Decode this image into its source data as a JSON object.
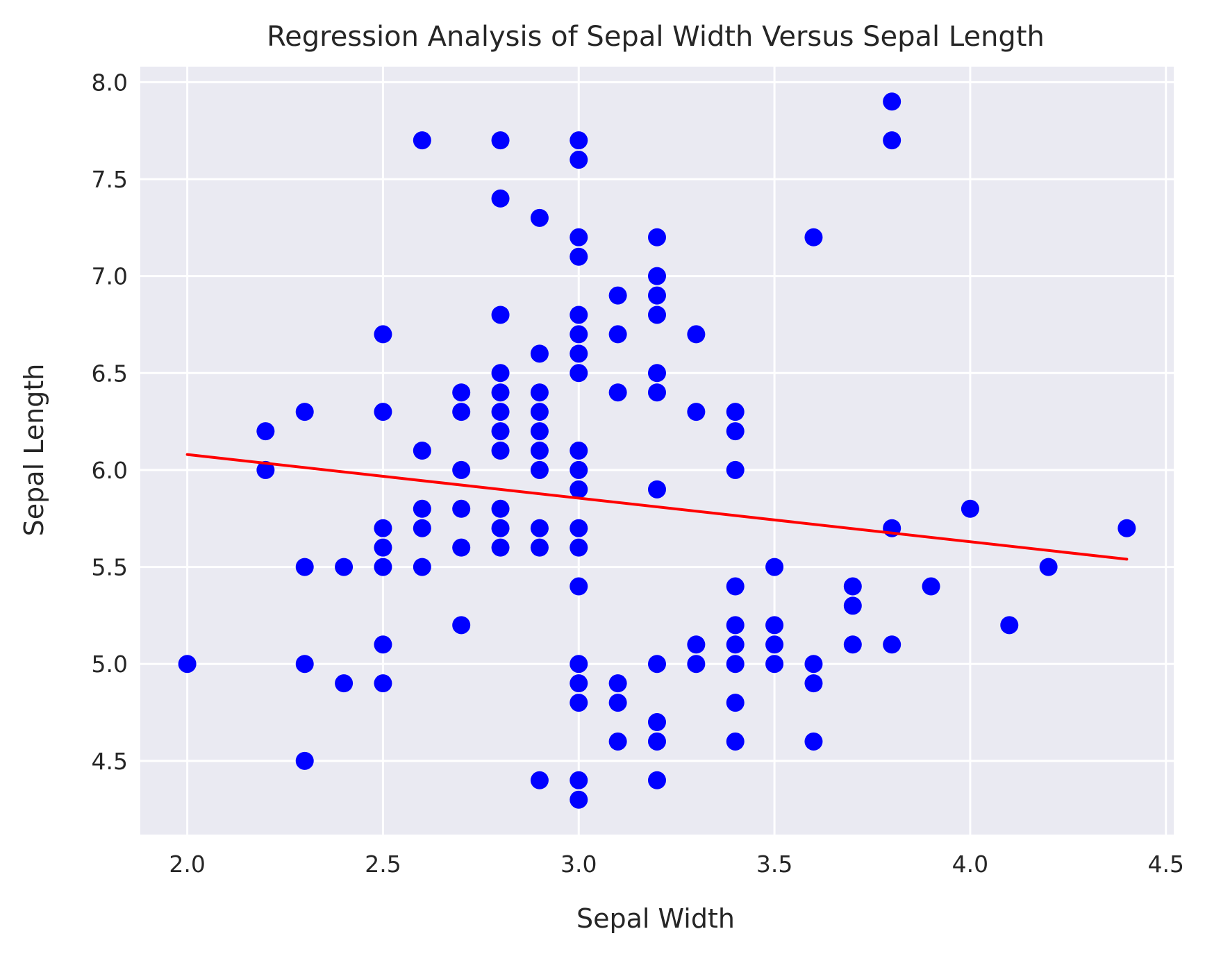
{
  "chart_data": {
    "type": "scatter",
    "title": "Regression Analysis of Sepal Width Versus Sepal Length",
    "xlabel": "Sepal Width",
    "ylabel": "Sepal Length",
    "xlim": [
      1.88,
      4.52
    ],
    "ylim": [
      4.12,
      8.08
    ],
    "x_ticks": [
      2.0,
      2.5,
      3.0,
      3.5,
      4.0,
      4.5
    ],
    "x_tick_labels": [
      "2.0",
      "2.5",
      "3.0",
      "3.5",
      "4.0",
      "4.5"
    ],
    "y_ticks": [
      4.5,
      5.0,
      5.5,
      6.0,
      6.5,
      7.0,
      7.5,
      8.0
    ],
    "y_tick_labels": [
      "4.5",
      "5.0",
      "5.5",
      "6.0",
      "6.5",
      "7.0",
      "7.5",
      "8.0"
    ],
    "grid": true,
    "background_color": "#EAEAF2",
    "grid_color": "#FFFFFF",
    "series": [
      {
        "type": "scatter",
        "color": "#0000FF",
        "points": [
          [
            2.0,
            5.0
          ],
          [
            2.2,
            6.2
          ],
          [
            2.2,
            6.0
          ],
          [
            2.3,
            6.3
          ],
          [
            2.3,
            5.5
          ],
          [
            2.3,
            5.0
          ],
          [
            2.3,
            4.5
          ],
          [
            2.4,
            5.5
          ],
          [
            2.4,
            4.9
          ],
          [
            2.5,
            6.7
          ],
          [
            2.5,
            6.3
          ],
          [
            2.5,
            5.7
          ],
          [
            2.5,
            5.6
          ],
          [
            2.5,
            5.5
          ],
          [
            2.5,
            5.1
          ],
          [
            2.5,
            4.9
          ],
          [
            2.6,
            7.7
          ],
          [
            2.6,
            6.1
          ],
          [
            2.6,
            5.8
          ],
          [
            2.6,
            5.7
          ],
          [
            2.6,
            5.5
          ],
          [
            2.7,
            6.4
          ],
          [
            2.7,
            6.3
          ],
          [
            2.7,
            6.0
          ],
          [
            2.7,
            5.8
          ],
          [
            2.7,
            5.6
          ],
          [
            2.7,
            5.2
          ],
          [
            2.8,
            7.7
          ],
          [
            2.8,
            7.4
          ],
          [
            2.8,
            6.8
          ],
          [
            2.8,
            6.5
          ],
          [
            2.8,
            6.4
          ],
          [
            2.8,
            6.3
          ],
          [
            2.8,
            6.2
          ],
          [
            2.8,
            6.1
          ],
          [
            2.8,
            5.8
          ],
          [
            2.8,
            5.7
          ],
          [
            2.8,
            5.6
          ],
          [
            2.9,
            7.3
          ],
          [
            2.9,
            6.6
          ],
          [
            2.9,
            6.4
          ],
          [
            2.9,
            6.3
          ],
          [
            2.9,
            6.2
          ],
          [
            2.9,
            6.1
          ],
          [
            2.9,
            6.0
          ],
          [
            2.9,
            5.7
          ],
          [
            2.9,
            5.6
          ],
          [
            2.9,
            4.4
          ],
          [
            3.0,
            7.7
          ],
          [
            3.0,
            7.6
          ],
          [
            3.0,
            7.2
          ],
          [
            3.0,
            7.1
          ],
          [
            3.0,
            6.8
          ],
          [
            3.0,
            6.7
          ],
          [
            3.0,
            6.6
          ],
          [
            3.0,
            6.5
          ],
          [
            3.0,
            6.1
          ],
          [
            3.0,
            6.0
          ],
          [
            3.0,
            5.9
          ],
          [
            3.0,
            5.7
          ],
          [
            3.0,
            5.6
          ],
          [
            3.0,
            5.4
          ],
          [
            3.0,
            5.0
          ],
          [
            3.0,
            4.9
          ],
          [
            3.0,
            4.8
          ],
          [
            3.0,
            4.4
          ],
          [
            3.0,
            4.3
          ],
          [
            3.1,
            6.9
          ],
          [
            3.1,
            6.7
          ],
          [
            3.1,
            6.4
          ],
          [
            3.1,
            4.9
          ],
          [
            3.1,
            4.8
          ],
          [
            3.1,
            4.6
          ],
          [
            3.2,
            7.2
          ],
          [
            3.2,
            7.0
          ],
          [
            3.2,
            6.9
          ],
          [
            3.2,
            6.8
          ],
          [
            3.2,
            6.5
          ],
          [
            3.2,
            6.4
          ],
          [
            3.2,
            5.9
          ],
          [
            3.2,
            5.0
          ],
          [
            3.2,
            4.7
          ],
          [
            3.2,
            4.6
          ],
          [
            3.2,
            4.4
          ],
          [
            3.3,
            6.7
          ],
          [
            3.3,
            6.3
          ],
          [
            3.3,
            5.1
          ],
          [
            3.3,
            5.0
          ],
          [
            3.4,
            6.3
          ],
          [
            3.4,
            6.2
          ],
          [
            3.4,
            6.0
          ],
          [
            3.4,
            5.4
          ],
          [
            3.4,
            5.2
          ],
          [
            3.4,
            5.1
          ],
          [
            3.4,
            5.0
          ],
          [
            3.4,
            4.8
          ],
          [
            3.4,
            4.6
          ],
          [
            3.5,
            5.5
          ],
          [
            3.5,
            5.2
          ],
          [
            3.5,
            5.1
          ],
          [
            3.5,
            5.0
          ],
          [
            3.6,
            7.2
          ],
          [
            3.6,
            5.0
          ],
          [
            3.6,
            4.9
          ],
          [
            3.6,
            4.6
          ],
          [
            3.7,
            5.4
          ],
          [
            3.7,
            5.3
          ],
          [
            3.7,
            5.1
          ],
          [
            3.8,
            7.9
          ],
          [
            3.8,
            7.7
          ],
          [
            3.8,
            5.7
          ],
          [
            3.8,
            5.1
          ],
          [
            3.9,
            5.4
          ],
          [
            4.0,
            5.8
          ],
          [
            4.1,
            5.2
          ],
          [
            4.2,
            5.5
          ],
          [
            4.4,
            5.7
          ]
        ]
      },
      {
        "type": "line",
        "color": "#FF0000",
        "x": [
          2.0,
          4.4
        ],
        "y": [
          6.08,
          5.54
        ]
      }
    ]
  }
}
